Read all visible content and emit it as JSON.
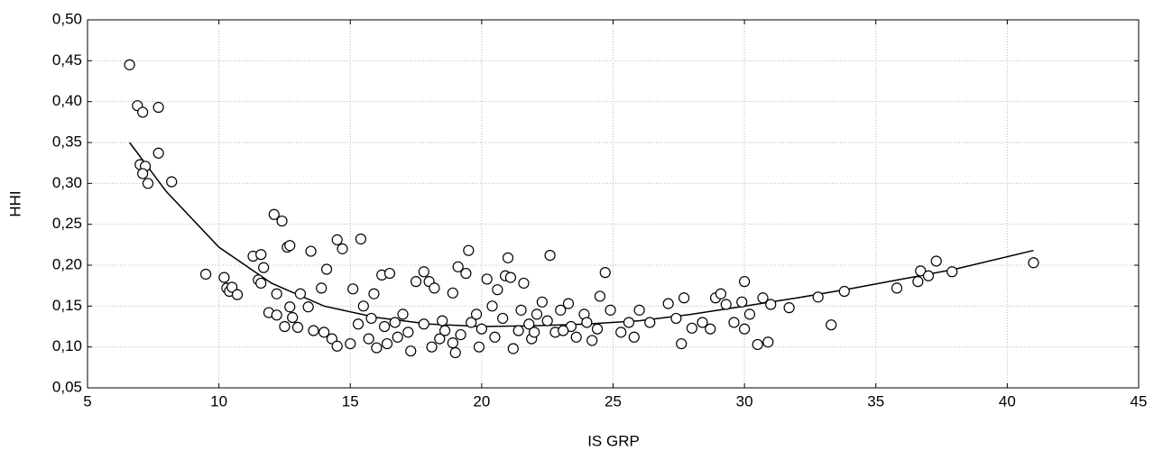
{
  "chart_data": {
    "type": "scatter",
    "x_label": "IS GRP",
    "y_label": "HHI",
    "color": "#ffffff",
    "edge_color": "#000000",
    "x": [
      6.6,
      6.9,
      7.1,
      7.7,
      7.7,
      7.0,
      7.2,
      7.1,
      7.3,
      8.2,
      9.5,
      10.2,
      10.3,
      10.4,
      10.5,
      10.7,
      11.3,
      11.6,
      11.5,
      11.6,
      11.7,
      11.9,
      12.1,
      12.4,
      12.6,
      12.7,
      12.2,
      12.2,
      12.5,
      12.7,
      12.8,
      13.0,
      13.1,
      13.4,
      13.5,
      13.6,
      13.9,
      14.0,
      14.1,
      14.3,
      14.5,
      14.7,
      14.5,
      15.0,
      15.1,
      15.4,
      15.3,
      15.5,
      15.7,
      15.9,
      16.0,
      16.2,
      16.4,
      16.5,
      16.7,
      17.0,
      17.3,
      17.5,
      17.8,
      18.0,
      18.2,
      18.1,
      18.4,
      18.6,
      18.9,
      19.0,
      19.1,
      19.4,
      19.5,
      19.6,
      19.9,
      20.2,
      20.4,
      20.6,
      20.9,
      21.0,
      21.1,
      21.2,
      21.4,
      21.6,
      21.9,
      22.1,
      22.3,
      22.6,
      22.8,
      23.0,
      23.3,
      23.6,
      23.9,
      24.2,
      24.5,
      24.7,
      24.9,
      25.3,
      25.6,
      25.8,
      26.0,
      26.4,
      27.1,
      27.4,
      27.6,
      27.7,
      28.0,
      28.4,
      28.7,
      28.9,
      29.1,
      29.3,
      29.6,
      29.9,
      30.0,
      30.2,
      30.0,
      30.5,
      30.7,
      30.9,
      31.0,
      31.7,
      32.8,
      33.3,
      33.8,
      35.8,
      36.6,
      36.7,
      37.0,
      37.3,
      37.9,
      41.0,
      16.3,
      17.2,
      17.8,
      18.5,
      19.2,
      20.0,
      20.8,
      21.8,
      22.5,
      23.4,
      24.0,
      16.8,
      18.9,
      20.5,
      22.0,
      24.4,
      15.8,
      19.8,
      21.5,
      23.1
    ],
    "values": [
      0.445,
      0.395,
      0.387,
      0.393,
      0.337,
      0.323,
      0.321,
      0.312,
      0.3,
      0.302,
      0.189,
      0.185,
      0.172,
      0.168,
      0.173,
      0.164,
      0.211,
      0.213,
      0.182,
      0.178,
      0.197,
      0.142,
      0.262,
      0.254,
      0.222,
      0.224,
      0.165,
      0.139,
      0.125,
      0.149,
      0.136,
      0.124,
      0.165,
      0.149,
      0.217,
      0.12,
      0.172,
      0.118,
      0.195,
      0.11,
      0.231,
      0.22,
      0.101,
      0.104,
      0.171,
      0.232,
      0.128,
      0.15,
      0.11,
      0.165,
      0.099,
      0.188,
      0.104,
      0.19,
      0.13,
      0.14,
      0.095,
      0.18,
      0.192,
      0.18,
      0.172,
      0.1,
      0.11,
      0.12,
      0.166,
      0.093,
      0.198,
      0.19,
      0.218,
      0.13,
      0.1,
      0.183,
      0.15,
      0.17,
      0.187,
      0.209,
      0.185,
      0.098,
      0.12,
      0.178,
      0.11,
      0.14,
      0.155,
      0.212,
      0.118,
      0.145,
      0.153,
      0.112,
      0.14,
      0.108,
      0.162,
      0.191,
      0.145,
      0.118,
      0.13,
      0.112,
      0.145,
      0.13,
      0.153,
      0.135,
      0.104,
      0.16,
      0.123,
      0.13,
      0.122,
      0.16,
      0.165,
      0.152,
      0.13,
      0.155,
      0.18,
      0.14,
      0.122,
      0.103,
      0.16,
      0.106,
      0.152,
      0.148,
      0.161,
      0.127,
      0.168,
      0.172,
      0.18,
      0.193,
      0.187,
      0.205,
      0.192,
      0.203,
      0.125,
      0.118,
      0.128,
      0.132,
      0.115,
      0.122,
      0.135,
      0.128,
      0.132,
      0.125,
      0.13,
      0.112,
      0.105,
      0.112,
      0.118,
      0.122,
      0.135,
      0.14,
      0.145,
      0.12
    ],
    "fit": {
      "type": "line",
      "color": "#000000",
      "x": [
        6.6,
        8,
        10,
        12,
        14,
        16,
        18,
        20,
        22,
        24,
        26,
        28,
        30,
        32,
        34,
        36,
        38,
        41
      ],
      "values": [
        0.35,
        0.29,
        0.222,
        0.178,
        0.15,
        0.136,
        0.128,
        0.125,
        0.126,
        0.128,
        0.132,
        0.14,
        0.15,
        0.16,
        0.171,
        0.183,
        0.195,
        0.218
      ]
    },
    "xlim": [
      5,
      45
    ],
    "ylim": [
      0.05,
      0.5
    ],
    "xticks": [
      5,
      10,
      15,
      20,
      25,
      30,
      35,
      40,
      45
    ],
    "yticks": [
      {
        "value": 0.05,
        "label": "0,05"
      },
      {
        "value": 0.1,
        "label": "0,10"
      },
      {
        "value": 0.15,
        "label": "0,15"
      },
      {
        "value": 0.2,
        "label": "0,20"
      },
      {
        "value": 0.25,
        "label": "0,25"
      },
      {
        "value": 0.3,
        "label": "0,30"
      },
      {
        "value": 0.35,
        "label": "0,35"
      },
      {
        "value": 0.4,
        "label": "0,40"
      },
      {
        "value": 0.45,
        "label": "0,45"
      },
      {
        "value": 0.5,
        "label": "0,50"
      }
    ],
    "grid": true
  }
}
